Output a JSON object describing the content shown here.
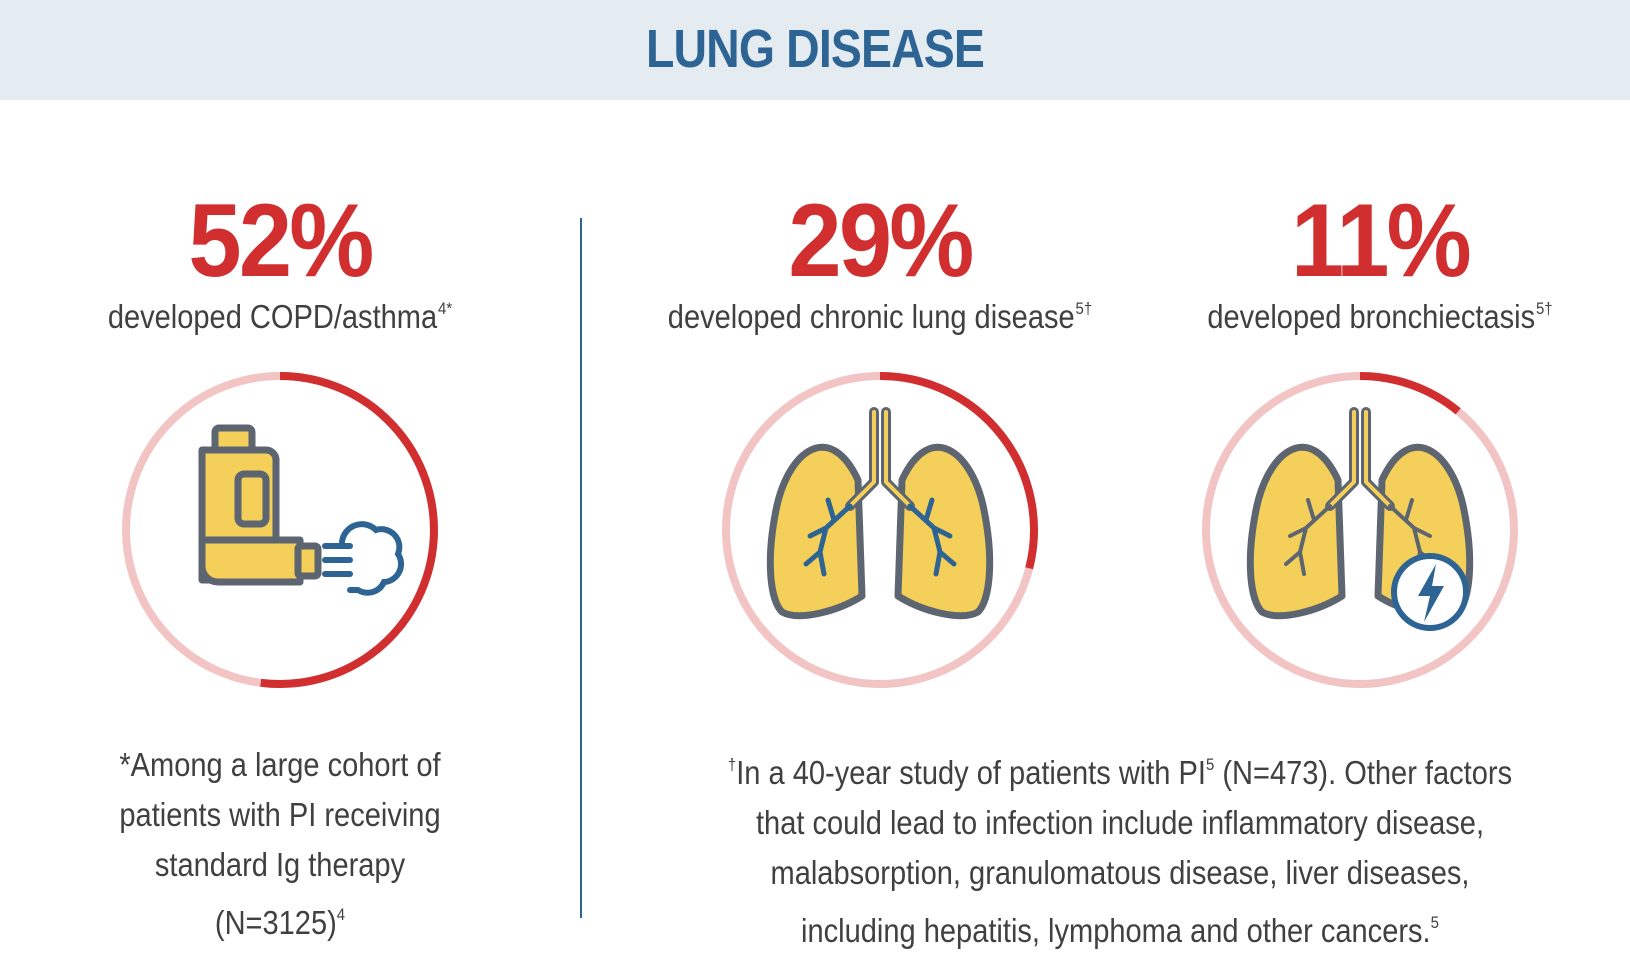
{
  "header": {
    "title": "LUNG DISEASE"
  },
  "colors": {
    "accent_red": "#d12f2f",
    "track_pink": "#f2c4c4",
    "header_bg": "#e4ebf1",
    "header_text": "#2d6494",
    "icon_yellow": "#f4cf5a",
    "icon_gray": "#5d6670",
    "icon_blue": "#2d6494"
  },
  "chart_data": [
    {
      "type": "donut",
      "value_percent": 52,
      "value_label": "52%",
      "label": "developed COPD/asthma",
      "label_sup": "4*",
      "icon": "inhaler-icon"
    },
    {
      "type": "donut",
      "value_percent": 29,
      "value_label": "29%",
      "label": "developed chronic lung disease",
      "label_sup": "5†",
      "icon": "lungs-icon"
    },
    {
      "type": "donut",
      "value_percent": 11,
      "value_label": "11%",
      "label": "developed bronchiectasis",
      "label_sup": "5†",
      "icon": "lungs-bronchiectasis-icon"
    }
  ],
  "footnotes": {
    "left": {
      "line1": "*Among a large cohort of",
      "line2": "patients with PI receiving",
      "line3": "standard Ig therapy",
      "line4": "(N=3125)",
      "line4_sup": "4"
    },
    "right": {
      "line1_sup_pre": "†",
      "line1_a": "In a 40-year study of patients with PI",
      "line1_sup": "5",
      "line1_b": " (N=473). Other factors",
      "line2": "that could lead to infection include inflammatory disease,",
      "line3": "malabsorption, granulomatous disease, liver diseases,",
      "line4": "including hepatitis, lymphoma and other cancers.",
      "line4_sup": "5"
    }
  }
}
